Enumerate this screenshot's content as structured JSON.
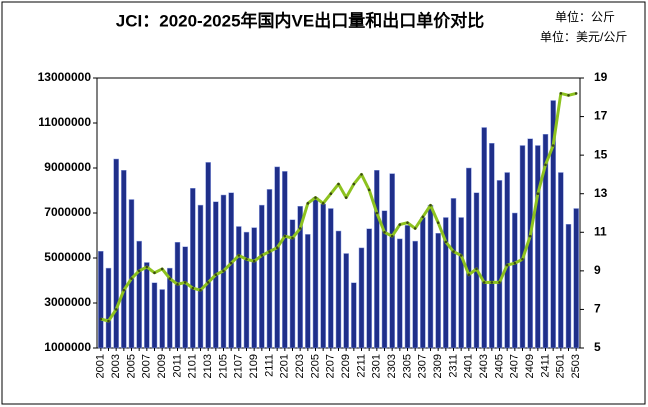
{
  "chart_data": {
    "type": "bar-line",
    "title": "JCI：2020-2025年国内VE出口量和出口单价对比",
    "unit_left": "单位：公斤",
    "unit_right": "单位：美元/公斤",
    "categories": [
      "2001",
      null,
      "2003",
      null,
      "2005",
      null,
      "2007",
      null,
      "2009",
      null,
      "2011",
      null,
      "2101",
      null,
      "2103",
      null,
      "2105",
      null,
      "2107",
      null,
      "2109",
      null,
      "2111",
      null,
      "2201",
      null,
      "2203",
      null,
      "2205",
      null,
      "2207",
      null,
      "2209",
      null,
      "2211",
      null,
      "2301",
      null,
      "2303",
      null,
      "2305",
      null,
      "2307",
      null,
      "2309",
      null,
      "2311",
      null,
      "2401",
      null,
      "2403",
      null,
      "2405",
      null,
      "2407",
      null,
      "2409",
      null,
      "2411",
      null,
      "2501",
      null,
      "2503"
    ],
    "series": [
      {
        "type": "bar",
        "color": "#1f2f8a",
        "values": [
          5300000,
          4550000,
          9400000,
          8900000,
          7600000,
          5750000,
          4800000,
          3900000,
          3600000,
          4550000,
          5700000,
          5500000,
          8100000,
          7350000,
          9250000,
          7500000,
          7800000,
          7900000,
          6400000,
          6150000,
          6350000,
          7350000,
          8050000,
          9050000,
          8850000,
          6700000,
          7300000,
          6050000,
          7700000,
          7400000,
          7200000,
          6200000,
          5200000,
          3900000,
          5450000,
          6300000,
          8900000,
          7100000,
          8750000,
          5850000,
          6450000,
          5750000,
          6800000,
          7350000,
          6100000,
          6800000,
          7650000,
          6800000,
          9000000,
          7900000,
          10800000,
          10100000,
          8450000,
          8800000,
          7000000,
          10000000,
          10300000,
          10000000,
          10500000,
          12000000,
          8800000,
          6500000,
          7200000
        ]
      },
      {
        "type": "line",
        "axis": "y2",
        "color": "#8dc21f",
        "values": [
          6.5,
          6.4,
          7.0,
          8.0,
          8.6,
          9.0,
          9.2,
          8.9,
          9.1,
          8.6,
          8.3,
          8.4,
          8.1,
          8.0,
          8.4,
          8.8,
          9.0,
          9.4,
          9.8,
          9.6,
          9.5,
          9.8,
          10.0,
          10.2,
          10.8,
          10.7,
          11.2,
          12.5,
          12.8,
          12.5,
          13.0,
          13.5,
          12.8,
          13.5,
          14.0,
          13.2,
          12.0,
          11.0,
          10.8,
          11.4,
          11.5,
          11.2,
          11.8,
          12.4,
          11.5,
          10.5,
          10.0,
          9.8,
          8.8,
          9.1,
          8.4,
          8.4,
          8.4,
          9.3,
          9.4,
          9.6,
          10.8,
          13.0,
          14.5,
          15.5,
          18.2,
          18.1,
          18.2
        ]
      }
    ],
    "ylim": [
      1000000,
      13000000
    ],
    "yticks": [
      1000000,
      3000000,
      5000000,
      7000000,
      9000000,
      11000000,
      13000000
    ],
    "y2lim": [
      5,
      19
    ],
    "y2ticks": [
      5,
      7,
      9,
      11,
      13,
      15,
      17,
      19
    ]
  }
}
